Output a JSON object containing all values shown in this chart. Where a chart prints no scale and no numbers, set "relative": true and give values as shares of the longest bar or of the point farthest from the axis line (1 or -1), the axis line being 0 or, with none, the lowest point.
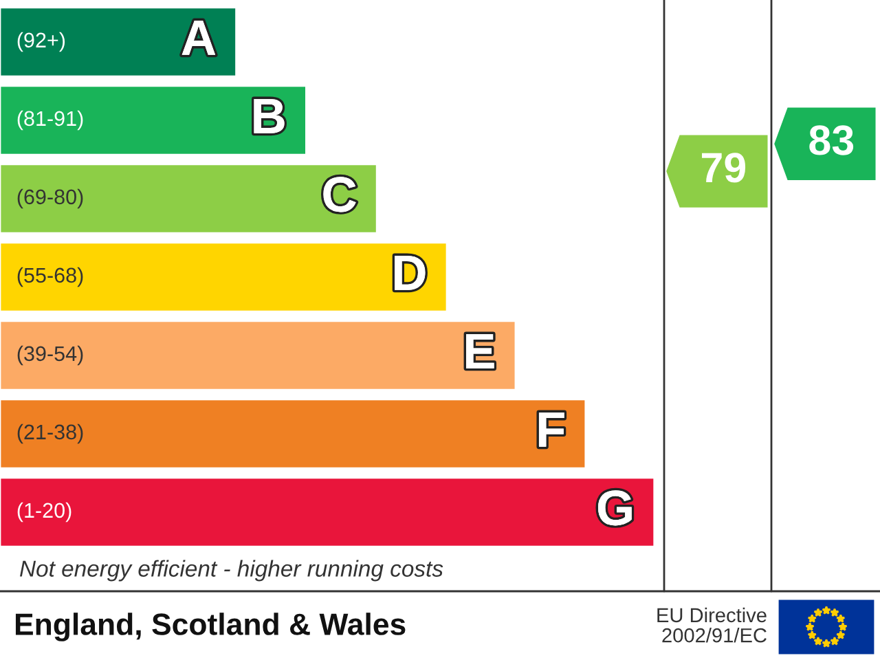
{
  "chart_data": {
    "type": "bar",
    "orientation": "horizontal",
    "relative": true,
    "categories": [
      "A",
      "B",
      "C",
      "D",
      "E",
      "F",
      "G"
    ],
    "values": [
      0.361,
      0.468,
      0.576,
      0.683,
      0.788,
      0.895,
      1.0
    ],
    "colors": [
      "#008054",
      "#19b459",
      "#8dce46",
      "#ffd500",
      "#fcaa65",
      "#ef8023",
      "#e9153b"
    ],
    "annotations": [
      "(92+)",
      "(81-91)",
      "(69-80)",
      "(55-68)",
      "(39-54)",
      "(21-38)",
      "(1-20)",
      "79",
      "83",
      "Not energy efficient - higher running costs",
      "England, Scotland & Wales",
      "EU Directive\n2002/91/EC"
    ]
  }
}
